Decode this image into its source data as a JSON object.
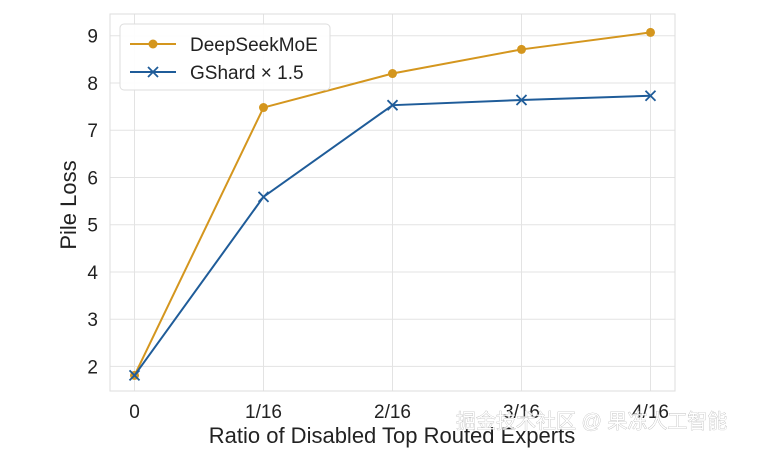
{
  "chart_data": {
    "type": "line",
    "title": "",
    "xlabel": "Ratio of Disabled Top Routed Experts",
    "ylabel": "Pile Loss",
    "categories": [
      "0",
      "1/16",
      "2/16",
      "3/16",
      "4/16"
    ],
    "x": [
      0,
      1,
      2,
      3,
      4
    ],
    "xlim": [
      -0.19,
      4.19
    ],
    "ylim": [
      1.48,
      9.46
    ],
    "yticks": [
      2,
      3,
      4,
      5,
      6,
      7,
      8,
      9
    ],
    "grid": true,
    "legend_position": "top-left",
    "series": [
      {
        "name": "DeepSeekMoE",
        "color": "#D4961E",
        "marker": "circle",
        "values": [
          1.81,
          7.48,
          8.2,
          8.71,
          9.07
        ]
      },
      {
        "name": "GShard × 1.5",
        "color": "#1F5C99",
        "marker": "x",
        "values": [
          1.81,
          5.59,
          7.53,
          7.64,
          7.73
        ]
      }
    ]
  },
  "watermark": "掘金技术社区 @ 果冻人工智能"
}
